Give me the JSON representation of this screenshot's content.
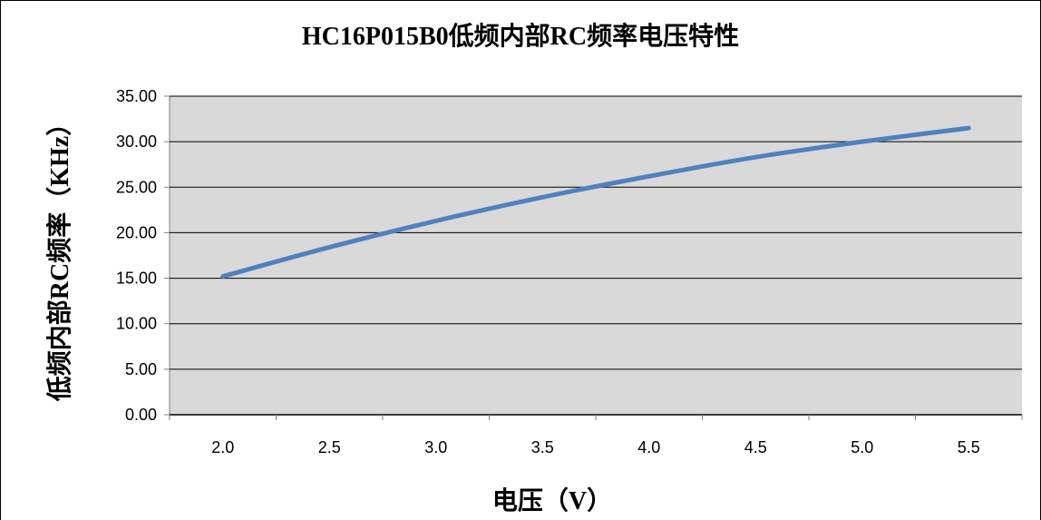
{
  "chart_data": {
    "type": "line",
    "title": "HC16P015B0低频内部RC频率电压特性",
    "xlabel": "电压（V）",
    "ylabel": "低频内部RC频率（KHz）",
    "categories": [
      "2.0",
      "2.5",
      "3.0",
      "3.5",
      "4.0",
      "4.5",
      "5.0",
      "5.5"
    ],
    "series": [
      {
        "values": [
          15.2,
          18.4,
          21.3,
          23.9,
          26.2,
          28.3,
          30.0,
          31.5
        ]
      }
    ],
    "y_ticks": [
      "0.00",
      "5.00",
      "10.00",
      "15.00",
      "20.00",
      "25.00",
      "30.00",
      "35.00"
    ],
    "ylim": [
      0,
      35
    ],
    "grid": true,
    "colors": {
      "line": "#4f81bd",
      "plot_background": "#d9d9d9",
      "grid": "#000000"
    }
  }
}
